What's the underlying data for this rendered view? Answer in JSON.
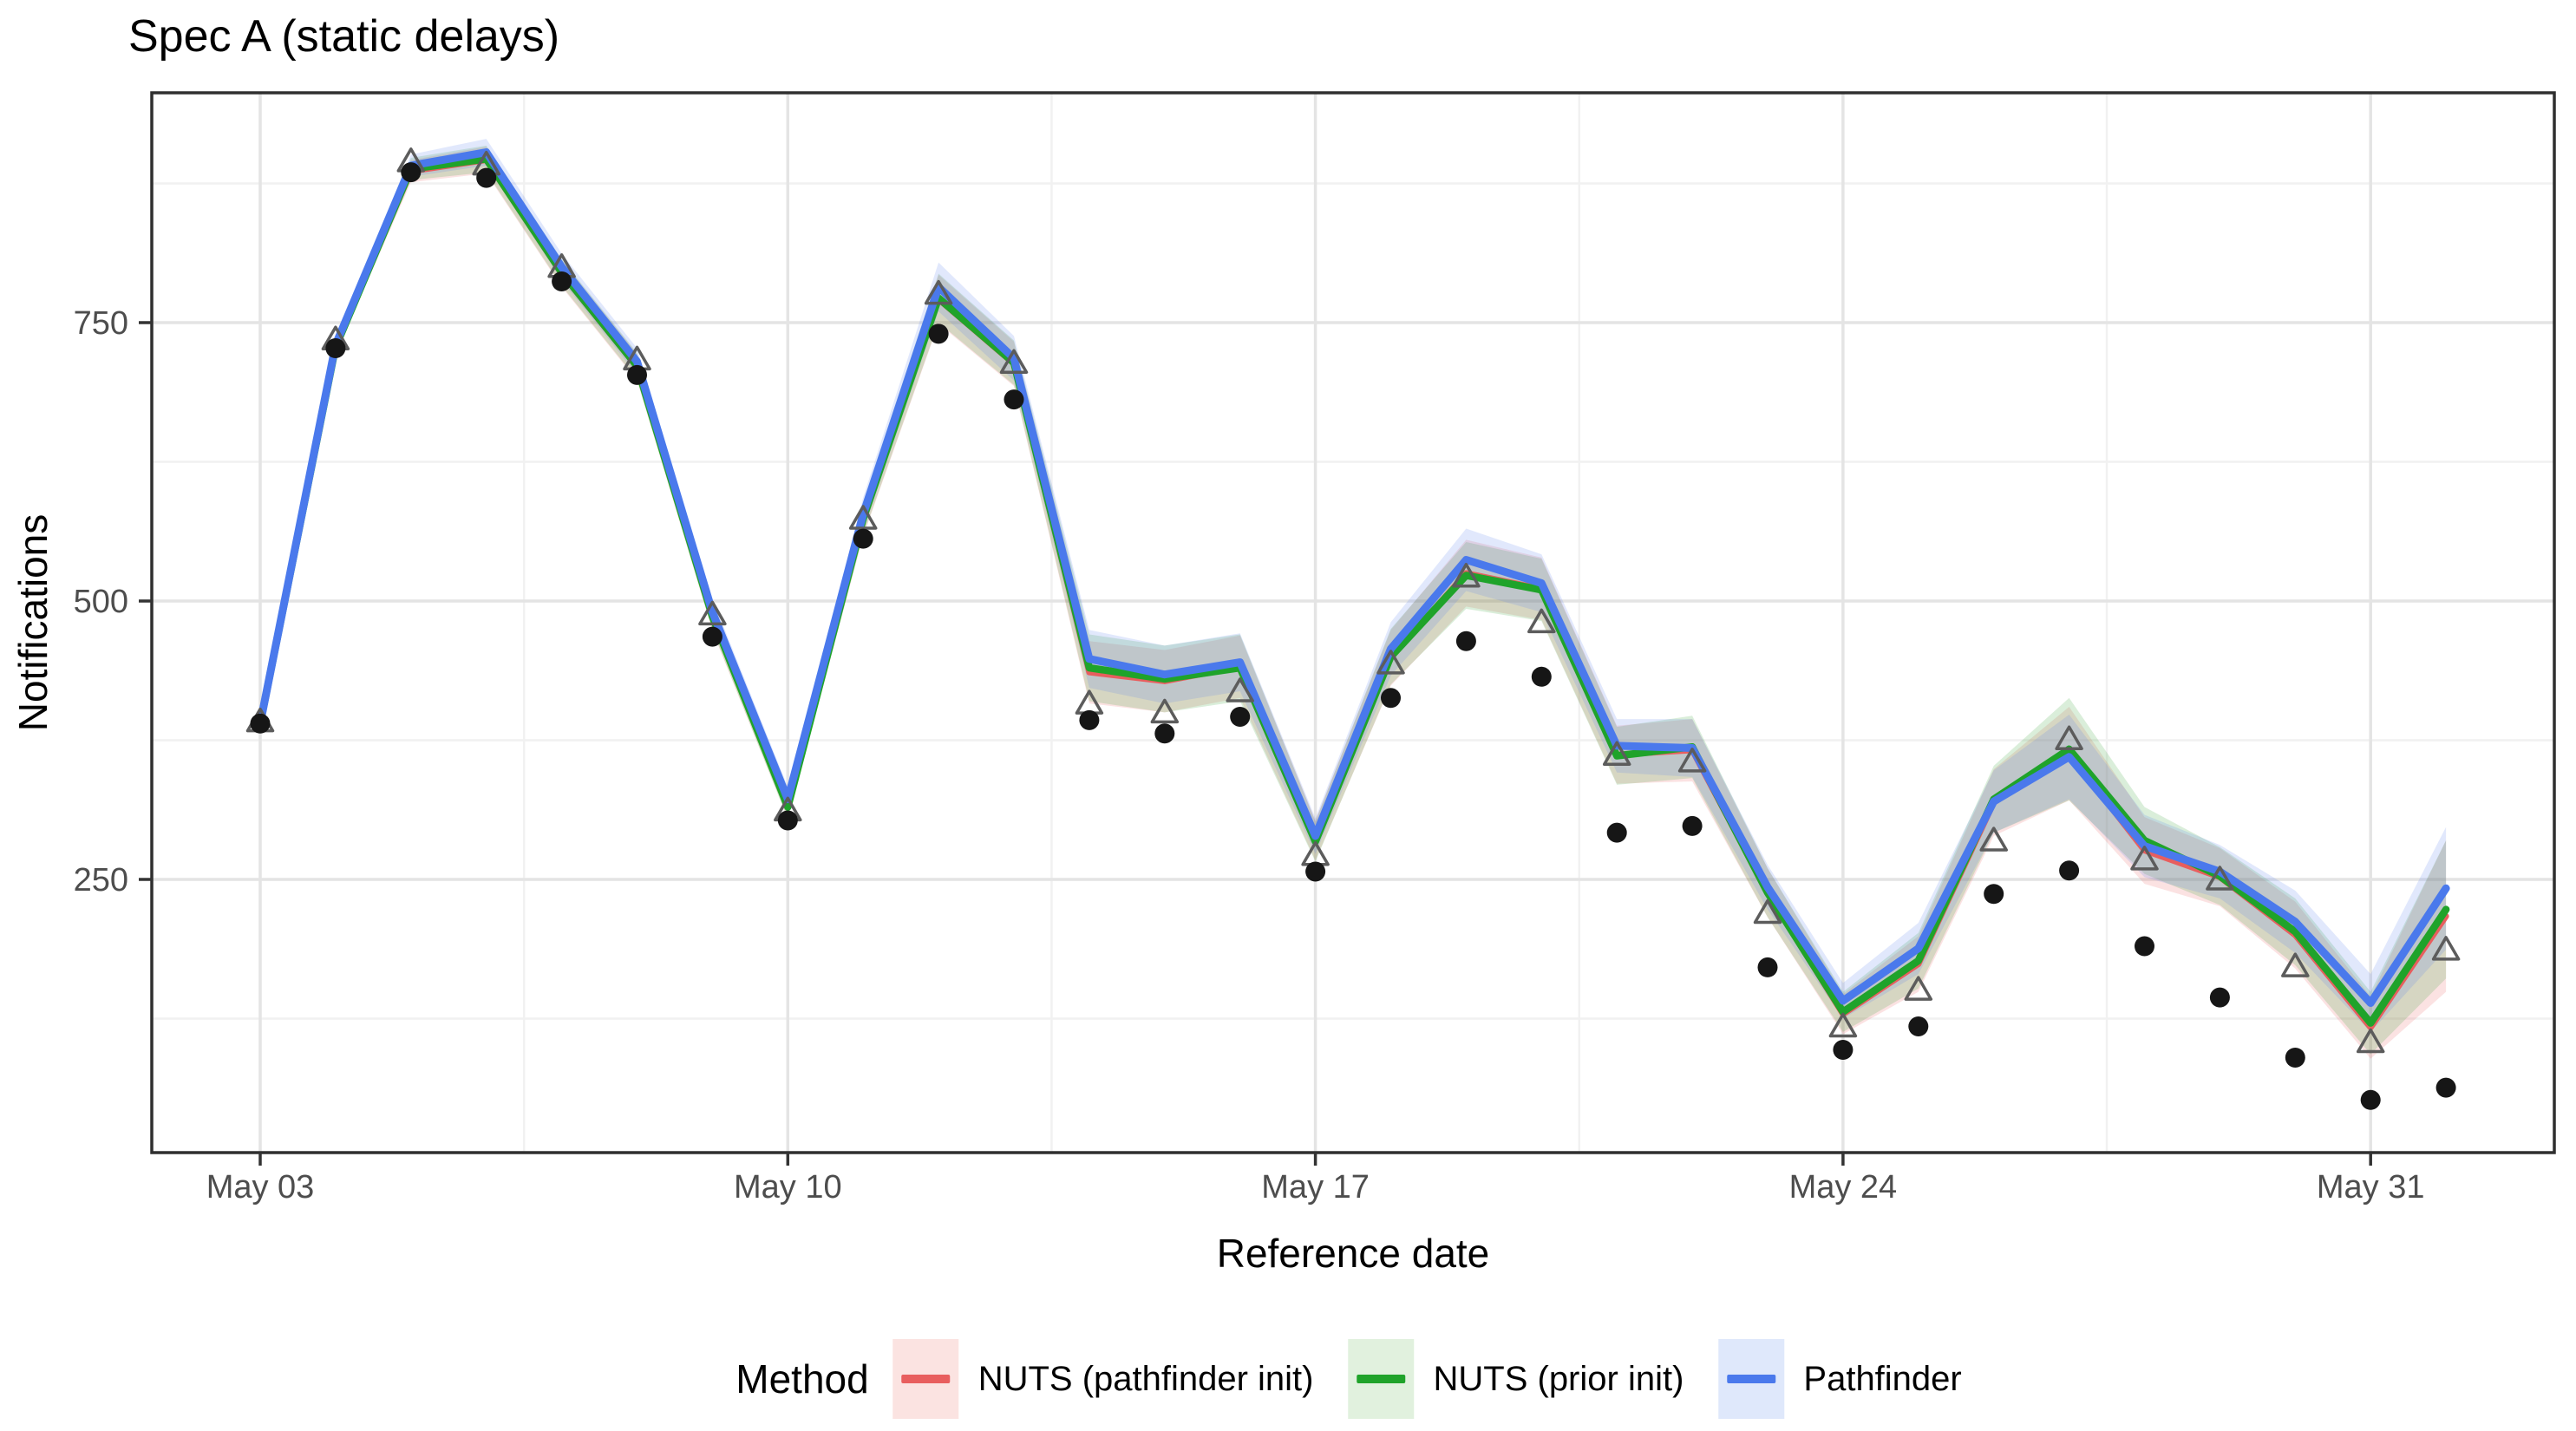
{
  "chart_data": {
    "type": "line",
    "title": "Spec A (static delays)",
    "xlabel": "Reference date",
    "ylabel": "Notifications",
    "legend_title": "Method",
    "legend_position": "bottom",
    "grid": true,
    "x_unit": "day",
    "x_tick_labels": [
      "May 03",
      "May 10",
      "May 17",
      "May 24",
      "May 31"
    ],
    "x_tick_days": [
      0,
      7,
      14,
      21,
      28
    ],
    "x_minor_days": [
      3.5,
      10.5,
      17.5,
      24.5
    ],
    "y_tick_labels": [
      "250",
      "500",
      "750"
    ],
    "y_ticks": [
      250,
      500,
      750
    ],
    "y_minor_ticks": [
      125,
      375,
      625,
      875
    ],
    "y_range": [
      9,
      958
    ],
    "x_range_days": [
      -1.45,
      30.45
    ],
    "n_days": 30,
    "series": [
      {
        "name": "NUTS (pathfinder init)",
        "slug": "nuts-pathfinder-init",
        "color": "#E85E5E",
        "ribbon_fill": "rgba(232,94,94,0.18)",
        "legend_fill": "#FBE3E1",
        "values": [
          390,
          728,
          886,
          896,
          794,
          710,
          485,
          316,
          573,
          771,
          713,
          436,
          428,
          441,
          285,
          449,
          525,
          511,
          362,
          366,
          238,
          129,
          174,
          319,
          363,
          276,
          252,
          200,
          117,
          217
        ],
        "ribbon_half": [
          3,
          6,
          10,
          12,
          12,
          12,
          12,
          11,
          15,
          22,
          20,
          28,
          28,
          28,
          18,
          25,
          30,
          28,
          26,
          28,
          22,
          18,
          25,
          30,
          42,
          30,
          26,
          30,
          28,
          68
        ]
      },
      {
        "name": "NUTS (prior init)",
        "slug": "nuts-prior-init",
        "color": "#1FA32A",
        "ribbon_fill": "rgba(50,160,50,0.18)",
        "legend_fill": "#E1F1DE",
        "values": [
          390,
          728,
          888,
          897,
          795,
          711,
          486,
          315,
          574,
          772,
          714,
          440,
          430,
          440,
          284,
          450,
          523,
          510,
          361,
          369,
          238,
          131,
          177,
          322,
          367,
          285,
          253,
          203,
          121,
          223
        ],
        "ribbon_half": [
          3,
          6,
          10,
          12,
          12,
          12,
          12,
          11,
          15,
          22,
          20,
          30,
          30,
          30,
          18,
          25,
          30,
          28,
          26,
          28,
          22,
          18,
          25,
          30,
          46,
          30,
          26,
          30,
          28,
          62
        ]
      },
      {
        "name": "Pathfinder",
        "slug": "pathfinder",
        "color": "#4A79EC",
        "ribbon_fill": "rgba(90,130,240,0.18)",
        "legend_fill": "#DFE8FB",
        "values": [
          390,
          730,
          891,
          903,
          800,
          715,
          490,
          322,
          578,
          782,
          718,
          448,
          434,
          445,
          289,
          457,
          537,
          516,
          370,
          368,
          243,
          141,
          188,
          320,
          360,
          280,
          257,
          212,
          139,
          242
        ],
        "ribbon_half": [
          3,
          6,
          10,
          12,
          12,
          12,
          12,
          11,
          15,
          22,
          20,
          26,
          26,
          26,
          16,
          24,
          28,
          26,
          24,
          26,
          20,
          16,
          23,
          28,
          38,
          28,
          24,
          28,
          26,
          55
        ]
      }
    ],
    "observed_points": {
      "dots": {
        "marker": "filled-circle",
        "color": "#161616",
        "values": [
          390,
          727,
          885,
          880,
          787,
          703,
          468,
          303,
          556,
          740,
          681,
          393,
          381,
          396,
          257,
          413,
          464,
          432,
          292,
          298,
          171,
          97,
          118,
          237,
          258,
          190,
          144,
          90,
          52,
          63
        ]
      },
      "triangles": {
        "marker": "open-triangle",
        "color": "#5C5C5C",
        "values": [
          392,
          735,
          895,
          892,
          800,
          717,
          488,
          312,
          574,
          776,
          714,
          408,
          400,
          419,
          272,
          444,
          522,
          481,
          362,
          356,
          220,
          118,
          151,
          285,
          376,
          268,
          250,
          172,
          104,
          187
        ]
      }
    },
    "panel_colors": {
      "background": "#FFFFFF",
      "border": "#2F2F2F",
      "grid_major": "#E4E4E4",
      "grid_minor": "#F1F1F1",
      "tick": "#333333",
      "tick_label": "#4D4D4D"
    }
  }
}
